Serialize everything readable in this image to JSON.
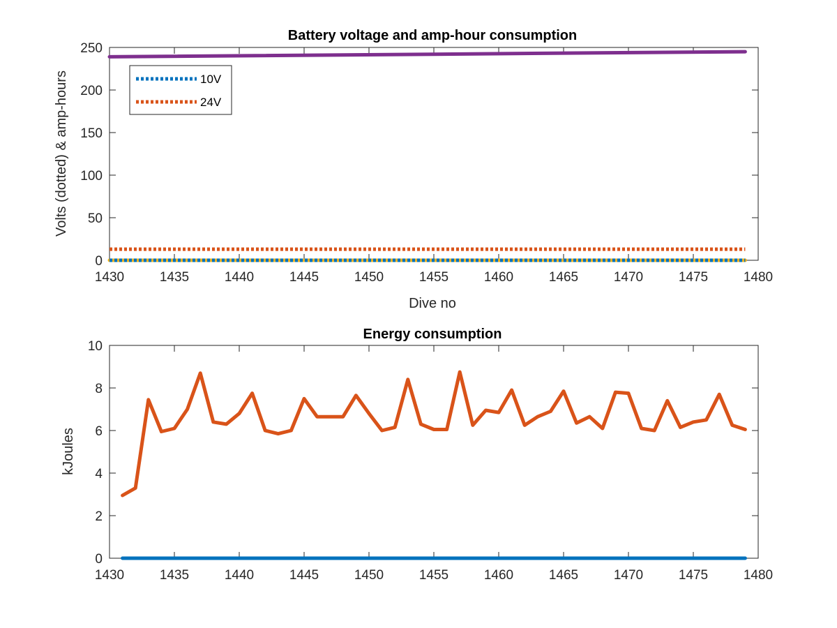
{
  "chart_data": [
    {
      "type": "line",
      "title": "Battery voltage and amp-hour consumption",
      "xlabel": "Dive no",
      "ylabel": "Volts (dotted) & amp-hours",
      "xlim": [
        1430,
        1480
      ],
      "ylim": [
        0,
        250
      ],
      "xticks": [
        1430,
        1435,
        1440,
        1445,
        1450,
        1455,
        1460,
        1465,
        1470,
        1475,
        1480
      ],
      "yticks": [
        0,
        50,
        100,
        150,
        200,
        250
      ],
      "legend_position": "top-left",
      "series": [
        {
          "name": "10V",
          "style": "dotted",
          "color": "#0072BD",
          "x": [
            1430,
            1479
          ],
          "y": [
            0,
            0
          ]
        },
        {
          "name": "24V",
          "style": "dotted",
          "color": "#D95319",
          "x": [
            1430,
            1479
          ],
          "y": [
            13,
            13
          ]
        },
        {
          "style": "solid",
          "color": "#EDB120",
          "x": [
            1430,
            1479
          ],
          "y": [
            0,
            0
          ]
        },
        {
          "style": "solid",
          "color": "#7E2F8E",
          "x": [
            1430,
            1479
          ],
          "y": [
            239,
            245
          ]
        }
      ]
    },
    {
      "type": "line",
      "title": "Energy consumption",
      "xlabel": "",
      "ylabel": "kJoules",
      "xlim": [
        1430,
        1480
      ],
      "ylim": [
        0,
        10
      ],
      "xticks": [
        1430,
        1435,
        1440,
        1445,
        1450,
        1455,
        1460,
        1465,
        1470,
        1475,
        1480
      ],
      "yticks": [
        0,
        2,
        4,
        6,
        8,
        10
      ],
      "series": [
        {
          "style": "solid",
          "color": "#D95319",
          "x": [
            1431,
            1432,
            1433,
            1434,
            1435,
            1436,
            1437,
            1438,
            1439,
            1440,
            1441,
            1442,
            1443,
            1444,
            1445,
            1446,
            1447,
            1448,
            1449,
            1450,
            1451,
            1452,
            1453,
            1454,
            1455,
            1456,
            1457,
            1458,
            1459,
            1460,
            1461,
            1462,
            1463,
            1464,
            1465,
            1466,
            1467,
            1468,
            1469,
            1470,
            1471,
            1472,
            1473,
            1474,
            1475,
            1476,
            1477,
            1478,
            1479
          ],
          "y": [
            2.95,
            3.3,
            7.45,
            5.95,
            6.1,
            7.0,
            8.7,
            6.4,
            6.3,
            6.8,
            7.75,
            6.0,
            5.85,
            6.0,
            7.5,
            6.65,
            6.65,
            6.65,
            7.65,
            6.8,
            6.0,
            6.15,
            8.4,
            6.3,
            6.05,
            6.05,
            8.75,
            6.25,
            6.95,
            6.85,
            7.9,
            6.25,
            6.65,
            6.9,
            7.85,
            6.35,
            6.65,
            6.1,
            7.8,
            7.75,
            6.1,
            6.0,
            7.4,
            6.15,
            6.4,
            6.5,
            7.7,
            6.25,
            6.05
          ]
        },
        {
          "style": "solid",
          "color": "#0072BD",
          "x": [
            1431,
            1479
          ],
          "y": [
            0,
            0
          ]
        }
      ]
    }
  ]
}
